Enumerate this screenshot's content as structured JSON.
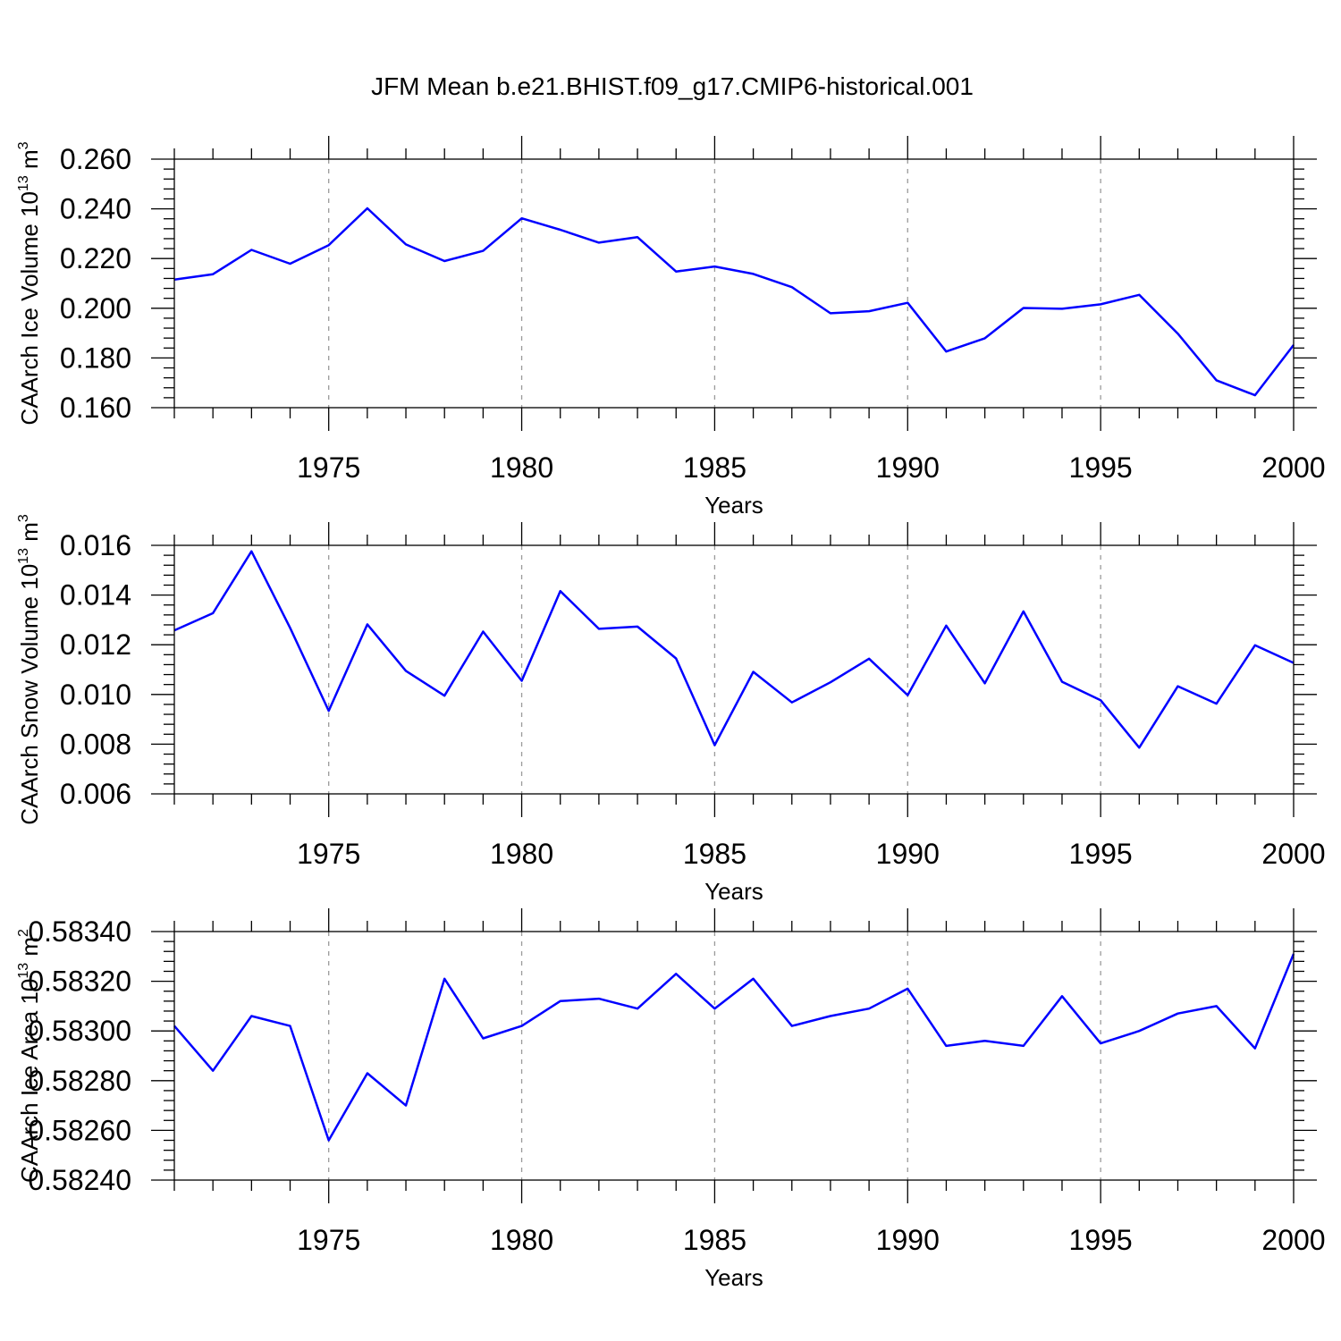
{
  "title": "JFM Mean b.e21.BHIST.f09_g17.CMIP6-historical.001",
  "chart_data": [
    {
      "type": "line",
      "id": "ice-volume",
      "ylabel_main": "CAArch Ice Volume 10",
      "ylabel_exp": "13",
      "ylabel_unit": "m",
      "ylabel_unit_exp": "3",
      "xlabel": "Years",
      "xlim": [
        1971,
        2000
      ],
      "x_ticks": [
        1975,
        1980,
        1985,
        1990,
        1995,
        2000
      ],
      "x_tick_labels": [
        "1975",
        "1980",
        "1985",
        "1990",
        "1995",
        "2000"
      ],
      "ylim": [
        0.16,
        0.26
      ],
      "y_ticks": [
        0.16,
        0.18,
        0.2,
        0.22,
        0.24,
        0.26
      ],
      "y_tick_labels": [
        "0.160",
        "0.180",
        "0.200",
        "0.220",
        "0.240",
        "0.260"
      ],
      "grid_x": true,
      "series": [
        {
          "name": "CAArch Ice Volume",
          "color": "#0000ff",
          "x": [
            1971,
            1972,
            1973,
            1974,
            1975,
            1976,
            1977,
            1978,
            1979,
            1980,
            1981,
            1982,
            1983,
            1984,
            1985,
            1986,
            1987,
            1988,
            1989,
            1990,
            1991,
            1992,
            1993,
            1994,
            1995,
            1996,
            1997,
            1998,
            1999,
            2000
          ],
          "values": [
            0.2115,
            0.2137,
            0.2235,
            0.2179,
            0.2254,
            0.2402,
            0.2257,
            0.219,
            0.2231,
            0.2362,
            0.2316,
            0.2264,
            0.2286,
            0.2148,
            0.2168,
            0.2138,
            0.2085,
            0.198,
            0.1988,
            0.2022,
            0.1826,
            0.1879,
            0.2001,
            0.1998,
            0.2016,
            0.2054,
            0.1898,
            0.171,
            0.165,
            0.1852
          ]
        }
      ]
    },
    {
      "type": "line",
      "id": "snow-volume",
      "ylabel_main": "CAArch Snow Volume 10",
      "ylabel_exp": "13",
      "ylabel_unit": "m",
      "ylabel_unit_exp": "3",
      "xlabel": "Years",
      "xlim": [
        1971,
        2000
      ],
      "x_ticks": [
        1975,
        1980,
        1985,
        1990,
        1995,
        2000
      ],
      "x_tick_labels": [
        "1975",
        "1980",
        "1985",
        "1990",
        "1995",
        "2000"
      ],
      "ylim": [
        0.006,
        0.016
      ],
      "y_ticks": [
        0.006,
        0.008,
        0.01,
        0.012,
        0.014,
        0.016
      ],
      "y_tick_labels": [
        "0.006",
        "0.008",
        "0.010",
        "0.012",
        "0.014",
        "0.016"
      ],
      "grid_x": true,
      "series": [
        {
          "name": "CAArch Snow Volume",
          "color": "#0000ff",
          "x": [
            1971,
            1972,
            1973,
            1974,
            1975,
            1976,
            1977,
            1978,
            1979,
            1980,
            1981,
            1982,
            1983,
            1984,
            1985,
            1986,
            1987,
            1988,
            1989,
            1990,
            1991,
            1992,
            1993,
            1994,
            1995,
            1996,
            1997,
            1998,
            1999,
            2000
          ],
          "values": [
            0.01258,
            0.01327,
            0.01576,
            0.01268,
            0.00934,
            0.01282,
            0.01095,
            0.00995,
            0.01253,
            0.01055,
            0.01416,
            0.01264,
            0.01273,
            0.01145,
            0.00796,
            0.01091,
            0.00968,
            0.01049,
            0.01144,
            0.00997,
            0.01277,
            0.01045,
            0.01334,
            0.01051,
            0.00977,
            0.00786,
            0.01033,
            0.00963,
            0.01198,
            0.01127
          ]
        }
      ]
    },
    {
      "type": "line",
      "id": "ice-area",
      "ylabel_main": "CAArch Ice Area 10",
      "ylabel_exp": "13",
      "ylabel_unit": "m",
      "ylabel_unit_exp": "2",
      "xlabel": "Years",
      "xlim": [
        1971,
        2000
      ],
      "x_ticks": [
        1975,
        1980,
        1985,
        1990,
        1995,
        2000
      ],
      "x_tick_labels": [
        "1975",
        "1980",
        "1985",
        "1990",
        "1995",
        "2000"
      ],
      "ylim": [
        0.5824,
        0.5834
      ],
      "y_ticks": [
        0.5824,
        0.5826,
        0.5828,
        0.583,
        0.5832,
        0.5834
      ],
      "y_tick_labels": [
        "0.58240",
        "0.58260",
        "0.58280",
        "0.58300",
        "0.58320",
        "0.58340"
      ],
      "grid_x": true,
      "series": [
        {
          "name": "CAArch Ice Area",
          "color": "#0000ff",
          "x": [
            1971,
            1972,
            1973,
            1974,
            1975,
            1976,
            1977,
            1978,
            1979,
            1980,
            1981,
            1982,
            1983,
            1984,
            1985,
            1986,
            1987,
            1988,
            1989,
            1990,
            1991,
            1992,
            1993,
            1994,
            1995,
            1996,
            1997,
            1998,
            1999,
            2000
          ],
          "values": [
            0.58302,
            0.58284,
            0.58306,
            0.58302,
            0.58256,
            0.58283,
            0.5827,
            0.58321,
            0.58297,
            0.58302,
            0.58312,
            0.58313,
            0.58309,
            0.58323,
            0.58309,
            0.58321,
            0.58302,
            0.58306,
            0.58309,
            0.58317,
            0.58294,
            0.58296,
            0.58294,
            0.58314,
            0.58295,
            0.583,
            0.58307,
            0.5831,
            0.58293,
            0.58331
          ]
        }
      ]
    }
  ]
}
